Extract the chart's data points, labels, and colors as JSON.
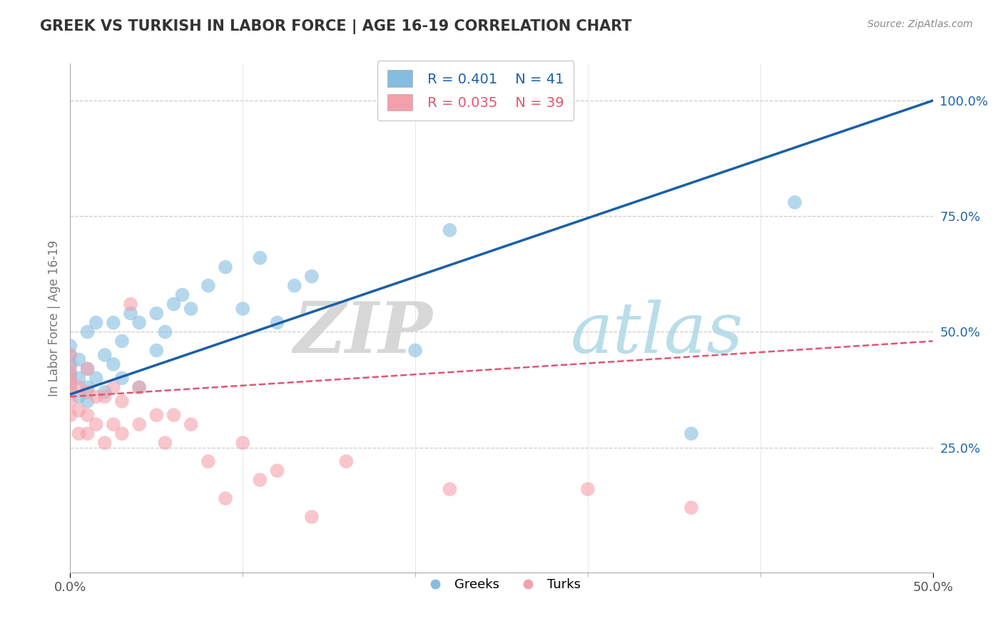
{
  "title": "GREEK VS TURKISH IN LABOR FORCE | AGE 16-19 CORRELATION CHART",
  "source_text": "Source: ZipAtlas.com",
  "ylabel": "In Labor Force | Age 16-19",
  "xlim": [
    0.0,
    0.5
  ],
  "ylim": [
    -0.02,
    1.08
  ],
  "ytick_positions": [
    0.25,
    0.5,
    0.75,
    1.0
  ],
  "ytick_labels": [
    "25.0%",
    "50.0%",
    "75.0%",
    "100.0%"
  ],
  "xtick_positions": [
    0.0,
    0.5
  ],
  "xtick_labels": [
    "0.0%",
    "50.0%"
  ],
  "legend_greek_R": "R = 0.401",
  "legend_greek_N": "N = 41",
  "legend_turk_R": "R = 0.035",
  "legend_turk_N": "N = 39",
  "greek_color": "#85bde0",
  "turk_color": "#f4a0aa",
  "greek_line_color": "#1a5fa8",
  "turk_line_color": "#e05570",
  "greek_scatter_x": [
    0.0,
    0.0,
    0.0,
    0.0,
    0.0,
    0.0,
    0.005,
    0.005,
    0.005,
    0.01,
    0.01,
    0.01,
    0.01,
    0.015,
    0.015,
    0.02,
    0.02,
    0.025,
    0.025,
    0.03,
    0.03,
    0.035,
    0.04,
    0.04,
    0.05,
    0.05,
    0.055,
    0.06,
    0.065,
    0.07,
    0.08,
    0.09,
    0.1,
    0.11,
    0.12,
    0.13,
    0.14,
    0.2,
    0.22,
    0.36,
    0.42
  ],
  "greek_scatter_y": [
    0.38,
    0.4,
    0.41,
    0.43,
    0.45,
    0.47,
    0.36,
    0.4,
    0.44,
    0.35,
    0.38,
    0.42,
    0.5,
    0.4,
    0.52,
    0.37,
    0.45,
    0.43,
    0.52,
    0.4,
    0.48,
    0.54,
    0.38,
    0.52,
    0.46,
    0.54,
    0.5,
    0.56,
    0.58,
    0.55,
    0.6,
    0.64,
    0.55,
    0.66,
    0.52,
    0.6,
    0.62,
    0.46,
    0.72,
    0.28,
    0.78
  ],
  "turk_scatter_x": [
    0.0,
    0.0,
    0.0,
    0.0,
    0.0,
    0.0,
    0.0,
    0.005,
    0.005,
    0.005,
    0.01,
    0.01,
    0.01,
    0.01,
    0.015,
    0.015,
    0.02,
    0.02,
    0.025,
    0.025,
    0.03,
    0.03,
    0.035,
    0.04,
    0.04,
    0.05,
    0.055,
    0.06,
    0.07,
    0.08,
    0.09,
    0.1,
    0.11,
    0.12,
    0.14,
    0.16,
    0.22,
    0.3,
    0.36
  ],
  "turk_scatter_y": [
    0.32,
    0.35,
    0.37,
    0.39,
    0.4,
    0.42,
    0.45,
    0.28,
    0.33,
    0.38,
    0.28,
    0.32,
    0.37,
    0.42,
    0.3,
    0.36,
    0.26,
    0.36,
    0.3,
    0.38,
    0.28,
    0.35,
    0.56,
    0.3,
    0.38,
    0.32,
    0.26,
    0.32,
    0.3,
    0.22,
    0.14,
    0.26,
    0.18,
    0.2,
    0.1,
    0.22,
    0.16,
    0.16,
    0.12
  ],
  "greek_line_x0": 0.0,
  "greek_line_y0": 0.365,
  "greek_line_x1": 0.5,
  "greek_line_y1": 1.0,
  "turk_line_x0": 0.0,
  "turk_line_y0": 0.36,
  "turk_line_x1": 0.5,
  "turk_line_y1": 0.48
}
